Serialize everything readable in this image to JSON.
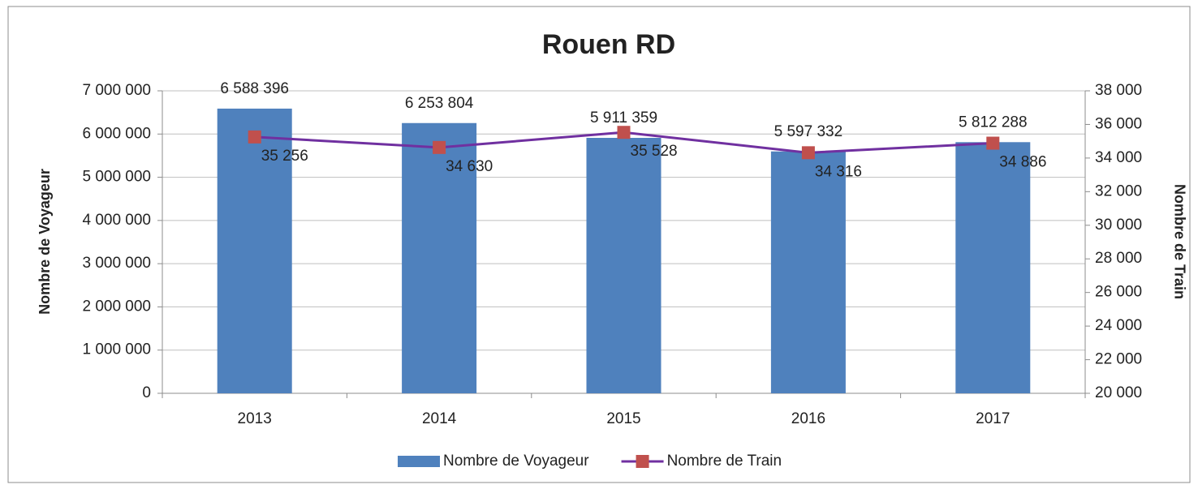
{
  "chart_data": {
    "type": "bar",
    "title": "Rouen RD",
    "categories": [
      "2013",
      "2014",
      "2015",
      "2016",
      "2017"
    ],
    "series": [
      {
        "name": "Nombre de Voyageur",
        "type": "bar",
        "color": "#4f81bd",
        "values": [
          6588396,
          6253804,
          5911359,
          5597332,
          5812288
        ],
        "value_labels": [
          "6 588 396",
          "6 253 804",
          "5 911 359",
          "5 597 332",
          "5 812 288"
        ]
      },
      {
        "name": "Nombre de Train",
        "type": "line",
        "axis": "y2",
        "color": "#7030a0",
        "marker_color": "#c0504d",
        "values": [
          35256,
          34630,
          35528,
          34316,
          34886
        ],
        "value_labels": [
          "35 256",
          "34 630",
          "35 528",
          "34 316",
          "34 886"
        ]
      }
    ],
    "ylabel": "Nombre de Voyageur",
    "y2label": "Nombre de Train",
    "ylim": [
      0,
      7000000
    ],
    "yticks": [
      0,
      {
        "value": 1000000,
        "label": "1 000 000"
      },
      {
        "value": 2000000,
        "label": "2 000 000"
      },
      {
        "value": 3000000,
        "label": "3 000 000"
      },
      {
        "value": 4000000,
        "label": "4 000 000"
      },
      {
        "value": 5000000,
        "label": "5 000 000"
      },
      {
        "value": 6000000,
        "label": "6 000 000"
      },
      {
        "value": 7000000,
        "label": "7 000 000"
      }
    ],
    "y2lim": [
      20000,
      38000
    ],
    "y2ticks": [
      {
        "value": 20000,
        "label": "20 000"
      },
      {
        "value": 22000,
        "label": "22 000"
      },
      {
        "value": 24000,
        "label": "24 000"
      },
      {
        "value": 26000,
        "label": "26 000"
      },
      {
        "value": 28000,
        "label": "28 000"
      },
      {
        "value": 30000,
        "label": "30 000"
      },
      {
        "value": 32000,
        "label": "32 000"
      },
      {
        "value": 34000,
        "label": "34 000"
      },
      {
        "value": 36000,
        "label": "36 000"
      },
      {
        "value": 38000,
        "label": "38 000"
      }
    ],
    "grid": true,
    "legend": "bottom"
  }
}
